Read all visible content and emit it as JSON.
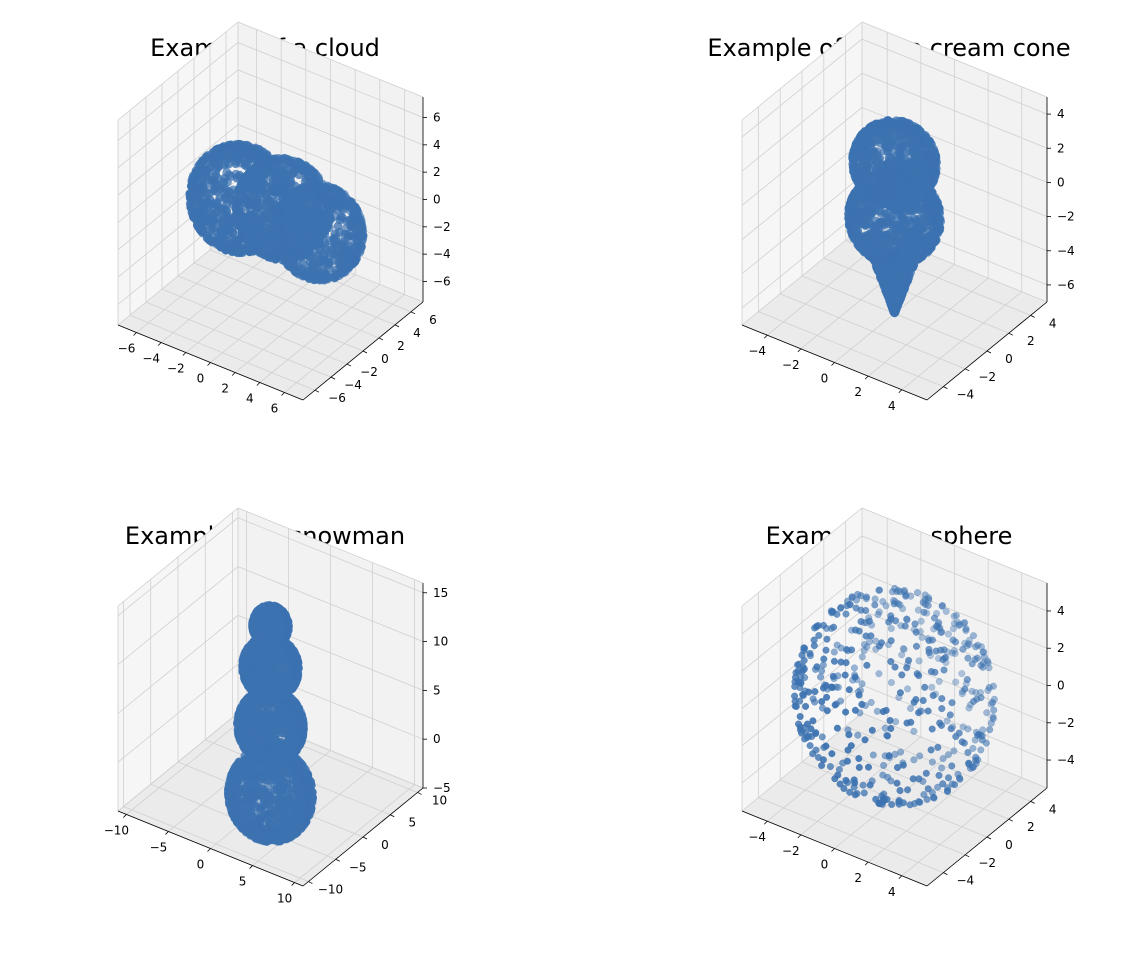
{
  "chart_data": [
    {
      "type": "scatter3d",
      "title": "Example of a cloud",
      "shape": "cloud",
      "xlim": [
        -7.5,
        7.5
      ],
      "ylim": [
        -7.5,
        7.5
      ],
      "zlim": [
        -7.5,
        7.5
      ],
      "xticks": [
        -6,
        -4,
        -2,
        0,
        2,
        4,
        6
      ],
      "yticks": [
        -6,
        -4,
        -2,
        0,
        2,
        4,
        6
      ],
      "zticks": [
        -6,
        -4,
        -2,
        0,
        2,
        4,
        6
      ],
      "grid": true,
      "color": "#3c72b0"
    },
    {
      "type": "scatter3d",
      "title": "Example of an ice cream cone",
      "shape": "ice-cream-cone",
      "xlim": [
        -5.5,
        5.5
      ],
      "ylim": [
        -5.5,
        5.5
      ],
      "zlim": [
        -7,
        5
      ],
      "xticks": [
        -4,
        -2,
        0,
        2,
        4
      ],
      "yticks": [
        -4,
        -2,
        0,
        2,
        4
      ],
      "zticks": [
        -6,
        -4,
        -2,
        0,
        2,
        4
      ],
      "grid": true,
      "color": "#3c72b0"
    },
    {
      "type": "scatter3d",
      "title": "Example of a snowman",
      "shape": "snowman",
      "xlim": [
        -11,
        11
      ],
      "ylim": [
        -11,
        11
      ],
      "zlim": [
        -5,
        16
      ],
      "xticks": [
        -10,
        -5,
        0,
        5,
        10
      ],
      "yticks": [
        -10,
        -5,
        0,
        5,
        10
      ],
      "zticks": [
        -5,
        0,
        5,
        10,
        15
      ],
      "grid": true,
      "color": "#3c72b0"
    },
    {
      "type": "scatter3d",
      "title": "Example of a sphere",
      "shape": "sphere",
      "xlim": [
        -5.5,
        5.5
      ],
      "ylim": [
        -5.5,
        5.5
      ],
      "zlim": [
        -5.5,
        5.5
      ],
      "xticks": [
        -4,
        -2,
        0,
        2,
        4
      ],
      "yticks": [
        -4,
        -2,
        0,
        2,
        4
      ],
      "zticks": [
        -4,
        -2,
        0,
        2,
        4
      ],
      "grid": true,
      "color": "#3c72b0"
    }
  ]
}
